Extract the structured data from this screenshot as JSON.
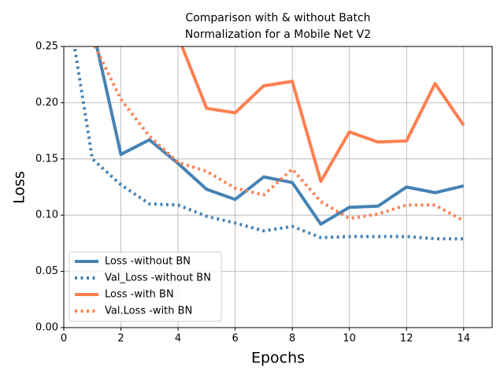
{
  "chart_data": {
    "type": "line",
    "title": [
      "Comparison with & without Batch",
      " Normalization for a Mobile Net V2"
    ],
    "x_label": "Epochs",
    "y_label": "Loss",
    "x": [
      0,
      1,
      2,
      3,
      4,
      5,
      6,
      7,
      8,
      9,
      10,
      11,
      12,
      13,
      14
    ],
    "series": [
      {
        "name": "Loss -without BN",
        "color": "#4682b4",
        "style": "solid",
        "values": [
          null,
          0.268,
          0.154,
          0.167,
          0.146,
          0.123,
          0.114,
          0.134,
          0.129,
          0.092,
          0.107,
          0.108,
          0.125,
          0.12,
          0.126
        ]
      },
      {
        "name": "Val_Loss -without BN",
        "color": "#4682b4",
        "style": "dotted",
        "values": [
          0.31,
          0.15,
          0.127,
          0.11,
          0.109,
          0.099,
          0.093,
          0.086,
          0.09,
          0.08,
          0.081,
          0.081,
          0.081,
          0.079,
          0.079
        ]
      },
      {
        "name": "Loss -with BN",
        "color": "#ff7f50",
        "style": "solid",
        "values": [
          null,
          null,
          null,
          null,
          0.259,
          0.195,
          0.191,
          0.215,
          0.219,
          0.13,
          0.174,
          0.165,
          0.166,
          0.217,
          0.18
        ]
      },
      {
        "name": "Val.Loss -with BN",
        "color": "#ff7f50",
        "style": "dotted",
        "values": [
          null,
          0.255,
          0.203,
          0.17,
          0.147,
          0.139,
          0.124,
          0.118,
          0.141,
          0.112,
          0.097,
          0.101,
          0.109,
          0.109,
          0.095
        ]
      }
    ],
    "xlim": [
      0,
      15
    ],
    "ylim": [
      0,
      0.25
    ],
    "xticks": [
      0,
      2,
      4,
      6,
      8,
      10,
      12,
      14
    ],
    "yticks": [
      {
        "value": 0,
        "label": "0.00"
      },
      {
        "value": 0.05,
        "label": "0.05"
      },
      {
        "value": 0.1,
        "label": "0.10"
      },
      {
        "value": 0.15,
        "label": "0.15"
      },
      {
        "value": 0.2,
        "label": "0.20"
      },
      {
        "value": 0.25,
        "label": "0.25"
      }
    ],
    "grid": true,
    "legend": "lower left"
  }
}
